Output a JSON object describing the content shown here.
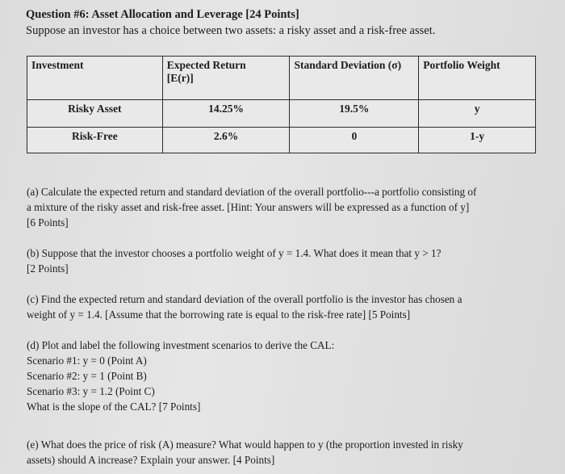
{
  "question": {
    "title": "Question #6: Asset Allocation and Leverage [24 Points]",
    "intro": "Suppose an investor has a choice between two assets: a risky asset and a risk-free asset."
  },
  "table": {
    "headers": [
      "Investment",
      "Expected Return",
      "[E(r)]",
      "Standard Deviation (σ)",
      "Portfolio Weight"
    ],
    "rows": [
      {
        "investment": "Risky Asset",
        "expected_return": "14.25%",
        "std_dev": "19.5%",
        "weight": "y"
      },
      {
        "investment": "Risk-Free",
        "expected_return": "2.6%",
        "std_dev": "0",
        "weight": "1-y"
      }
    ]
  },
  "parts": {
    "a": [
      "(a) Calculate the expected return and standard deviation of the overall portfolio---a portfolio consisting of",
      "a mixture of the risky asset and risk-free asset. [Hint: Your answers will be expressed as a function of y]",
      "[6 Points]"
    ],
    "b": [
      "(b) Suppose that the investor chooses a portfolio weight of y = 1.4. What does it mean that y > 1?",
      "[2 Points]"
    ],
    "c": [
      "(c) Find the expected return and standard deviation of the overall portfolio is the investor has chosen a",
      "weight of y = 1.4. [Assume that the borrowing rate is equal to the risk-free rate] [5 Points]"
    ],
    "d": [
      "(d) Plot and label the following investment scenarios to derive the CAL:",
      "Scenario #1: y = 0 (Point A)",
      "Scenario #2: y = 1 (Point B)",
      "Scenario #3: y = 1.2 (Point C)",
      "What is the slope of the CAL? [7 Points]"
    ],
    "e": [
      "(e) What does the price of risk (A) measure? What would happen to y (the proportion invested in risky",
      "assets) should A increase? Explain your answer. [4 Points]"
    ]
  }
}
